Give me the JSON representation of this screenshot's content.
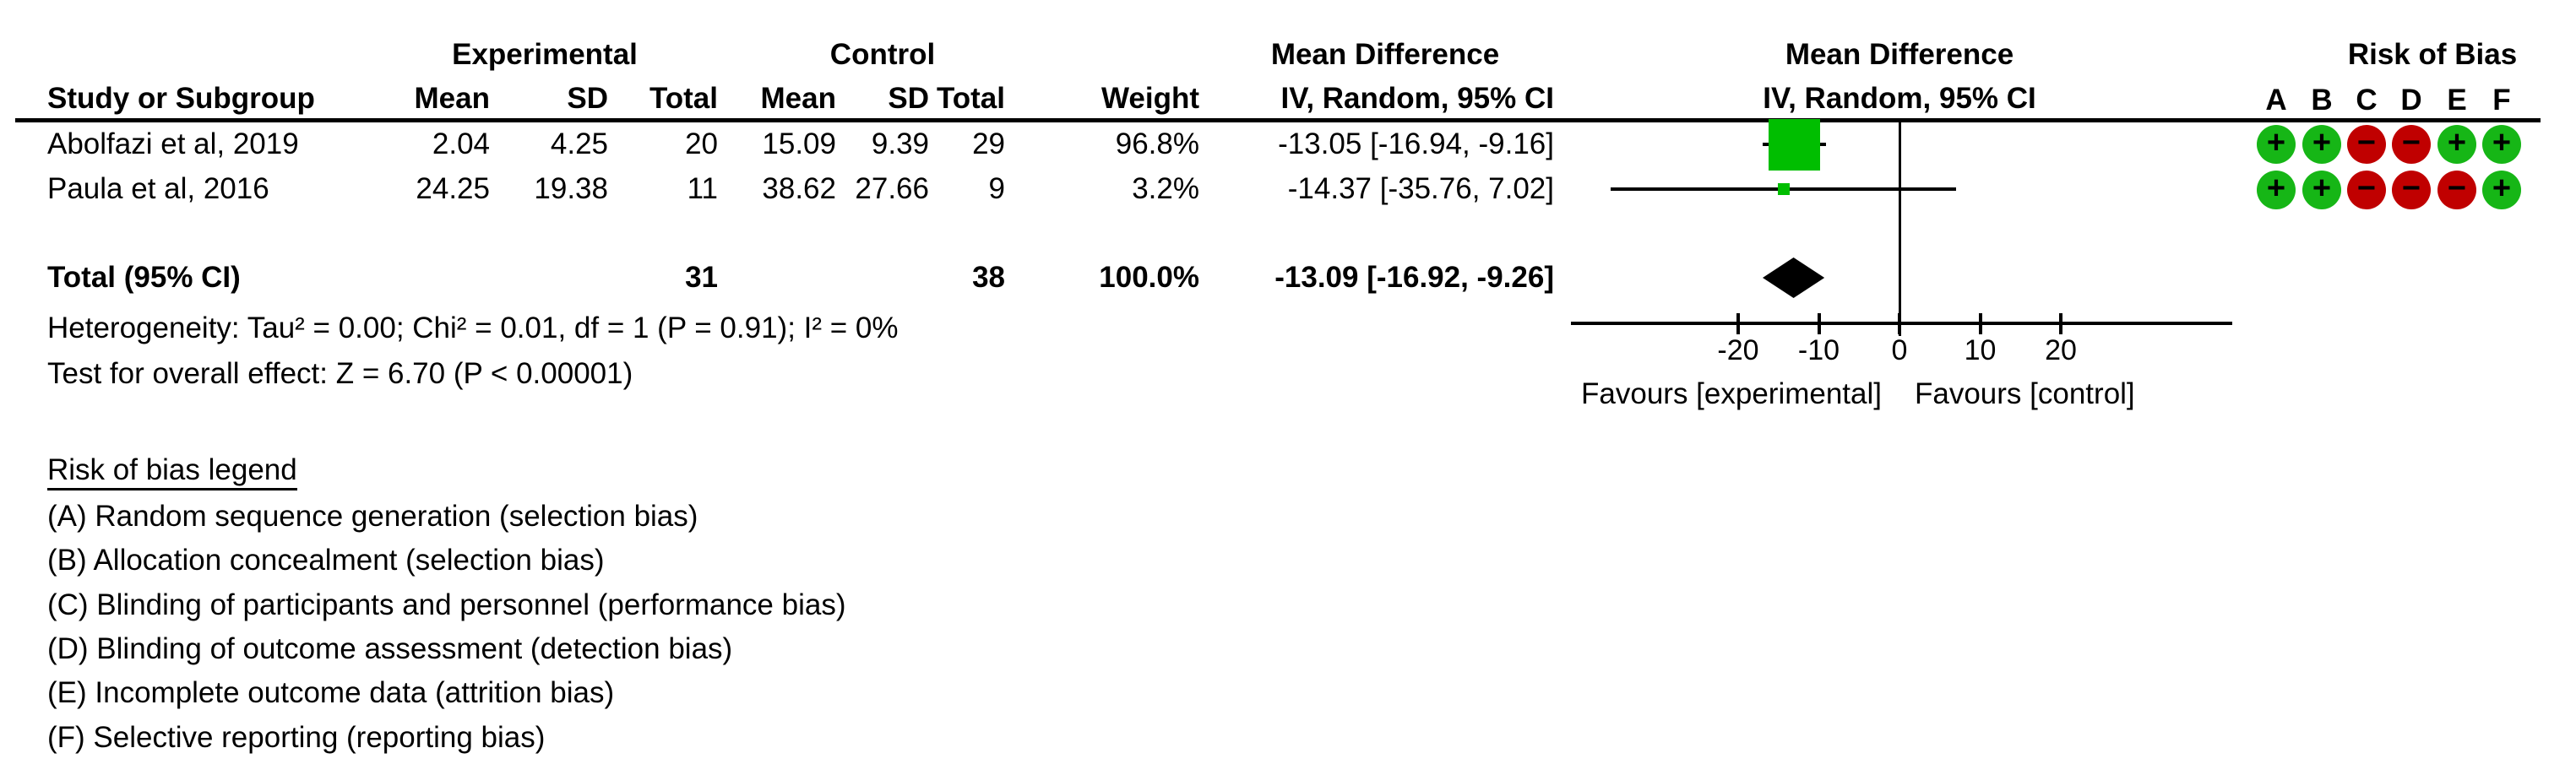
{
  "table": {
    "group_headers": {
      "experimental": "Experimental",
      "control": "Control",
      "md_text_col": "Mean Difference",
      "md_plot_col": "Mean Difference",
      "risk_of_bias": "Risk of Bias"
    },
    "col_headers": {
      "study": "Study or Subgroup",
      "mean": "Mean",
      "sd": "SD",
      "total": "Total",
      "weight": "Weight",
      "iv_text": "IV, Random, 95% CI",
      "iv_plot": "IV, Random, 95% CI",
      "rob_letters": [
        "A",
        "B",
        "C",
        "D",
        "E",
        "F"
      ]
    },
    "studies": [
      {
        "name": "Abolfazi et al, 2019",
        "exp_mean": "2.04",
        "exp_sd": "4.25",
        "exp_total": "20",
        "ctl_mean": "15.09",
        "ctl_sd": "9.39",
        "ctl_total": "29",
        "weight": "96.8%",
        "ci_text": "-13.05 [-16.94, -9.16]"
      },
      {
        "name": "Paula et al, 2016",
        "exp_mean": "24.25",
        "exp_sd": "19.38",
        "exp_total": "11",
        "ctl_mean": "38.62",
        "ctl_sd": "27.66",
        "ctl_total": "9",
        "weight": "3.2%",
        "ci_text": "-14.37 [-35.76, 7.02]"
      }
    ],
    "total_row": {
      "label": "Total (95% CI)",
      "exp_total": "31",
      "ctl_total": "38",
      "weight": "100.0%",
      "ci_text": "-13.09 [-16.92, -9.26]"
    },
    "heterogeneity": "Heterogeneity: Tau² = 0.00; Chi² = 0.01, df = 1 (P = 0.91); I² = 0%",
    "overall_effect": "Test for overall effect: Z = 6.70 (P < 0.00001)"
  },
  "chart_data": {
    "type": "forest",
    "effect_measure": "Mean Difference, IV, Random, 95% CI",
    "x_ticks": [
      -20,
      -10,
      0,
      10,
      20
    ],
    "x_axis_range": [
      -40.7,
      41.2
    ],
    "studies": [
      {
        "name": "Abolfazi et al, 2019",
        "md": -13.05,
        "ci_low": -16.94,
        "ci_high": -9.16,
        "weight_pct": 96.8
      },
      {
        "name": "Paula et al, 2016",
        "md": -14.37,
        "ci_low": -35.76,
        "ci_high": 7.02,
        "weight_pct": 3.2
      }
    ],
    "total": {
      "md": -13.09,
      "ci_low": -16.92,
      "ci_high": -9.26,
      "weight_pct": 100.0
    },
    "favours_left": "Favours [experimental]",
    "favours_right": "Favours [control]"
  },
  "risk_of_bias": {
    "rows": [
      [
        "+",
        "+",
        "-",
        "-",
        "+",
        "+"
      ],
      [
        "+",
        "+",
        "-",
        "-",
        "-",
        "+"
      ]
    ]
  },
  "legend": {
    "title": "Risk of bias legend",
    "items": [
      "(A) Random sequence generation (selection bias)",
      "(B) Allocation concealment (selection bias)",
      "(C) Blinding of participants and personnel (performance bias)",
      "(D) Blinding of outcome assessment (detection bias)",
      "(E) Incomplete outcome data (attrition bias)",
      "(F) Selective reporting (reporting bias)"
    ]
  },
  "colors": {
    "square_green": "#00BE00",
    "circle_green": "#16B616",
    "circle_red": "#C00000",
    "diamond_black": "#000000",
    "line_black": "#000000"
  }
}
